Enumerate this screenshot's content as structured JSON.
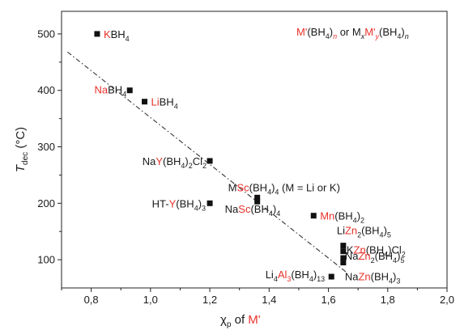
{
  "chart_data": {
    "type": "scatter",
    "title": "",
    "xlabel": {
      "parts": [
        {
          "text": "χ",
          "color": "dark"
        },
        {
          "text": "p",
          "color": "dark",
          "sub": true
        },
        {
          "text": " of ",
          "color": "dark"
        },
        {
          "text": "M'",
          "color": "red"
        }
      ]
    },
    "ylabel": {
      "parts": [
        {
          "text": "T",
          "color": "dark",
          "italic": true
        },
        {
          "text": "dec",
          "color": "dark",
          "sub": true
        },
        {
          "text": " (°C)",
          "color": "dark"
        }
      ]
    },
    "xlim": [
      0.7,
      2.0
    ],
    "ylim": [
      50,
      540
    ],
    "x_ticks": [
      {
        "value": 0.8,
        "label": "0,8"
      },
      {
        "value": 1.0,
        "label": "1,0"
      },
      {
        "value": 1.2,
        "label": "1,2"
      },
      {
        "value": 1.4,
        "label": "1,4"
      },
      {
        "value": 1.6,
        "label": "1,6"
      },
      {
        "value": 1.8,
        "label": "1,8"
      },
      {
        "value": 2.0,
        "label": "2,0"
      }
    ],
    "y_ticks": [
      {
        "value": 100,
        "label": "100"
      },
      {
        "value": 200,
        "label": "200"
      },
      {
        "value": 300,
        "label": "300"
      },
      {
        "value": 400,
        "label": "400"
      },
      {
        "value": 500,
        "label": "500"
      }
    ],
    "grid": false,
    "legend": {
      "position": "top-right",
      "parts": [
        {
          "text": "M'",
          "color": "red"
        },
        {
          "text": "(BH",
          "color": "dark"
        },
        {
          "text": "4",
          "color": "dark",
          "sub": true
        },
        {
          "text": ")",
          "color": "dark"
        },
        {
          "text": "n",
          "color": "red",
          "sub": true,
          "italic": true
        },
        {
          "text": " or M",
          "color": "dark"
        },
        {
          "text": "x",
          "color": "dark",
          "sub": true,
          "italic": true
        },
        {
          "text": "M'",
          "color": "red"
        },
        {
          "text": "y",
          "color": "red",
          "sub": true,
          "italic": true
        },
        {
          "text": "(BH",
          "color": "dark"
        },
        {
          "text": "4",
          "color": "dark",
          "sub": true
        },
        {
          "text": ")",
          "color": "dark"
        },
        {
          "text": "n",
          "color": "dark",
          "sub": true,
          "italic": true
        }
      ]
    },
    "trend_line": {
      "x": [
        0.72,
        1.66
      ],
      "y": [
        468,
        78
      ],
      "style": "dash-dot"
    },
    "points": [
      {
        "x": 0.82,
        "y": 500,
        "parts": [
          {
            "text": "K",
            "color": "red"
          },
          {
            "text": "BH",
            "color": "dark"
          },
          {
            "text": "4",
            "color": "dark",
            "sub": true
          }
        ]
      },
      {
        "x": 0.93,
        "y": 400,
        "parts": [
          {
            "text": "Na",
            "color": "red"
          },
          {
            "text": "BH",
            "color": "dark"
          },
          {
            "text": "4",
            "color": "dark",
            "sub": true
          }
        ]
      },
      {
        "x": 0.98,
        "y": 380,
        "parts": [
          {
            "text": "Li",
            "color": "red"
          },
          {
            "text": "BH",
            "color": "dark"
          },
          {
            "text": "4",
            "color": "dark",
            "sub": true
          }
        ]
      },
      {
        "x": 1.2,
        "y": 275,
        "parts": [
          {
            "text": "Na",
            "color": "dark"
          },
          {
            "text": "Y",
            "color": "red"
          },
          {
            "text": "(BH",
            "color": "dark"
          },
          {
            "text": "4",
            "color": "dark",
            "sub": true
          },
          {
            "text": ")",
            "color": "dark"
          },
          {
            "text": "2",
            "color": "dark",
            "sub": true
          },
          {
            "text": "Cl",
            "color": "dark"
          },
          {
            "text": "2",
            "color": "dark",
            "sub": true
          }
        ]
      },
      {
        "x": 1.2,
        "y": 200,
        "parts": [
          {
            "text": "HT-",
            "color": "dark"
          },
          {
            "text": "Y",
            "color": "red"
          },
          {
            "text": "(BH",
            "color": "dark"
          },
          {
            "text": "4",
            "color": "dark",
            "sub": true
          },
          {
            "text": ")",
            "color": "dark"
          },
          {
            "text": "3",
            "color": "dark",
            "sub": true
          }
        ]
      },
      {
        "x": 1.36,
        "y": 210,
        "parts": [
          {
            "text": "M",
            "color": "dark"
          },
          {
            "text": "Sc",
            "color": "red"
          },
          {
            "text": "(BH",
            "color": "dark"
          },
          {
            "text": "4",
            "color": "dark",
            "sub": true
          },
          {
            "text": ")",
            "color": "dark"
          },
          {
            "text": "4",
            "color": "dark",
            "sub": true
          },
          {
            "text": " (M = Li or K)",
            "color": "dark"
          }
        ]
      },
      {
        "x": 1.36,
        "y": 203,
        "parts": [
          {
            "text": "Na",
            "color": "dark"
          },
          {
            "text": "Sc",
            "color": "red"
          },
          {
            "text": "(BH",
            "color": "dark"
          },
          {
            "text": "4",
            "color": "dark",
            "sub": true
          },
          {
            "text": ")",
            "color": "dark"
          },
          {
            "text": "4",
            "color": "dark",
            "sub": true
          }
        ]
      },
      {
        "x": 1.55,
        "y": 178,
        "parts": [
          {
            "text": "Mn",
            "color": "red"
          },
          {
            "text": "(BH",
            "color": "dark"
          },
          {
            "text": "4",
            "color": "dark",
            "sub": true
          },
          {
            "text": ")",
            "color": "dark"
          },
          {
            "text": "2",
            "color": "dark",
            "sub": true
          }
        ]
      },
      {
        "x": 1.65,
        "y": 125,
        "parts": [
          {
            "text": "Li",
            "color": "dark"
          },
          {
            "text": "Zn",
            "color": "red"
          },
          {
            "text": "2",
            "color": "dark",
            "sub": true
          },
          {
            "text": "(BH",
            "color": "dark"
          },
          {
            "text": "4",
            "color": "dark",
            "sub": true
          },
          {
            "text": ")",
            "color": "dark"
          },
          {
            "text": "5",
            "color": "dark",
            "sub": true
          }
        ]
      },
      {
        "x": 1.65,
        "y": 115,
        "parts": [
          {
            "text": "K",
            "color": "dark"
          },
          {
            "text": "Zn",
            "color": "red"
          },
          {
            "text": "(BH",
            "color": "dark"
          },
          {
            "text": "4",
            "color": "dark",
            "sub": true
          },
          {
            "text": ")",
            "color": "dark"
          },
          {
            "text": "Cl",
            "color": "dark"
          },
          {
            "text": "2",
            "color": "dark",
            "sub": true
          }
        ]
      },
      {
        "x": 1.65,
        "y": 103,
        "parts": [
          {
            "text": "Na",
            "color": "dark"
          },
          {
            "text": "Zn",
            "color": "red"
          },
          {
            "text": "2",
            "color": "dark",
            "sub": true
          },
          {
            "text": "(BH",
            "color": "dark"
          },
          {
            "text": "4",
            "color": "dark",
            "sub": true
          },
          {
            "text": ")",
            "color": "dark"
          },
          {
            "text": "5",
            "color": "dark",
            "sub": true
          }
        ]
      },
      {
        "x": 1.65,
        "y": 95,
        "parts": [
          {
            "text": "Na",
            "color": "dark"
          },
          {
            "text": "Zn",
            "color": "red"
          },
          {
            "text": "(BH",
            "color": "dark"
          },
          {
            "text": "4",
            "color": "dark",
            "sub": true
          },
          {
            "text": ")",
            "color": "dark"
          },
          {
            "text": "3",
            "color": "dark",
            "sub": true
          }
        ]
      },
      {
        "x": 1.61,
        "y": 70,
        "parts": [
          {
            "text": "Li",
            "color": "dark"
          },
          {
            "text": "4",
            "color": "dark",
            "sub": true
          },
          {
            "text": "Al",
            "color": "red"
          },
          {
            "text": "3",
            "color": "red",
            "sub": true
          },
          {
            "text": "(BH",
            "color": "dark"
          },
          {
            "text": "4",
            "color": "dark",
            "sub": true
          },
          {
            "text": ")",
            "color": "dark"
          },
          {
            "text": "13",
            "color": "dark",
            "sub": true
          }
        ]
      }
    ]
  },
  "colors": {
    "red": "#e8312a",
    "dark": "#1a1a1a",
    "marker": "#111111"
  }
}
